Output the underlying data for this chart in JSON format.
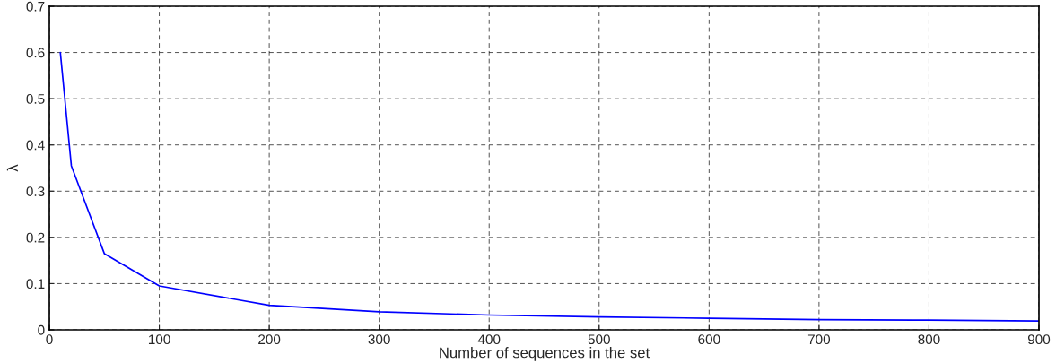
{
  "chart_data": {
    "type": "line",
    "xlabel": "Number of sequences in the set",
    "ylabel": "λ",
    "x": [
      10,
      20,
      50,
      100,
      200,
      300,
      400,
      500,
      600,
      700,
      800,
      900
    ],
    "series": [
      {
        "color": "#0000ff",
        "values": [
          0.6,
          0.355,
          0.165,
          0.095,
          0.053,
          0.039,
          0.032,
          0.028,
          0.025,
          0.022,
          0.021,
          0.019
        ]
      }
    ],
    "xlim": [
      0,
      900
    ],
    "xticks": [
      0,
      100,
      200,
      300,
      400,
      500,
      600,
      700,
      800,
      900
    ],
    "ylim": [
      0,
      0.7
    ],
    "yticks": [
      0,
      0.1,
      0.2,
      0.3,
      0.4,
      0.5,
      0.6,
      0.7
    ],
    "grid": true,
    "line_style": "solid",
    "marker": "none"
  }
}
